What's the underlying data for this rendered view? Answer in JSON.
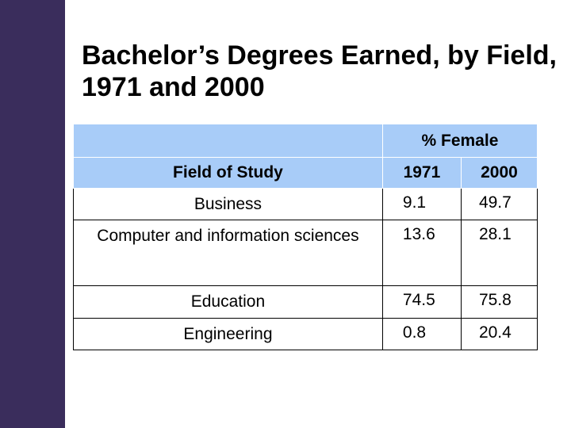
{
  "title": "Bachelor’s Degrees Earned, by Field, 1971 and 2000",
  "table": {
    "group_header": "% Female",
    "columns": [
      "Field of Study",
      "1971",
      "2000"
    ],
    "rows": [
      [
        "Business",
        9.1,
        49.7
      ],
      [
        "Computer and information sciences",
        13.6,
        28.1
      ],
      [
        "Education",
        74.5,
        75.8
      ],
      [
        "Engineering",
        0.8,
        20.4
      ]
    ]
  }
}
